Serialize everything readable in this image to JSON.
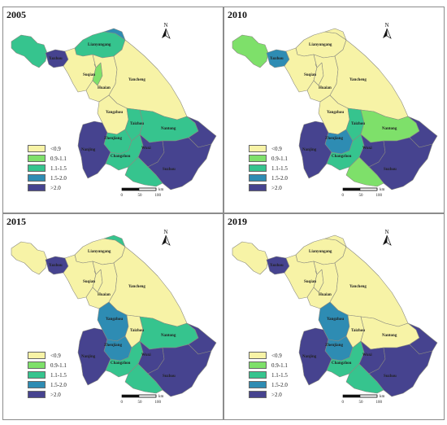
{
  "colors": {
    "c0": "#f7f3a6",
    "c1": "#7ee06a",
    "c2": "#36c48e",
    "c3": "#2e8cb3",
    "c4": "#46438f",
    "boundary": "#8a8a80"
  },
  "legend": [
    {
      "label": "<0.9",
      "color_key": "c0"
    },
    {
      "label": "0.9-1.1",
      "color_key": "c1"
    },
    {
      "label": "1.1-1.5",
      "color_key": "c2"
    },
    {
      "label": "1.5-2.0",
      "color_key": "c3"
    },
    {
      "label": ">2.0",
      "color_key": "c4"
    }
  ],
  "scale": {
    "labels": [
      "0",
      "50",
      "100"
    ],
    "unit": "km"
  },
  "north_label": "N",
  "cities": [
    "Lianyungang",
    "Xuzhou",
    "Suqian",
    "Huaian",
    "Yancheng",
    "Yangzhou",
    "Taizhou",
    "Nantong",
    "Zhenjiang",
    "Nanjing",
    "Changzhou",
    "Wuxi",
    "Suzhou"
  ],
  "panels": [
    {
      "year": "2005",
      "classes": {
        "xuzhou_w": "c2",
        "xuzhou_e": "c4",
        "lianyungang": "c2",
        "lyg_ne": "c3",
        "suqian": "c0",
        "suqian_strip": "c1",
        "huaian": "c0",
        "yancheng": "c0",
        "yangzhou": "c0",
        "taizhou": "c2",
        "nantong": "c2",
        "nantong_e": "c4",
        "zhenjiang": "c2",
        "nanjing": "c4",
        "changzhou": "c2",
        "wuxi": "c4",
        "suzhou": "c4",
        "suzhou_w": "c2"
      }
    },
    {
      "year": "2010",
      "classes": {
        "xuzhou_w": "c1",
        "xuzhou_e": "c3",
        "lianyungang": "c0",
        "lyg_ne": "c0",
        "suqian": "c0",
        "suqian_strip": "c0",
        "huaian": "c0",
        "yancheng": "c0",
        "yangzhou": "c0",
        "taizhou": "c2",
        "nantong": "c1",
        "nantong_e": "c4",
        "zhenjiang": "c3",
        "nanjing": "c4",
        "changzhou": "c2",
        "wuxi": "c4",
        "suzhou": "c4",
        "suzhou_w": "c1"
      }
    },
    {
      "year": "2015",
      "classes": {
        "xuzhou_w": "c0",
        "xuzhou_e": "c4",
        "lianyungang": "c0",
        "lyg_ne": "c2",
        "suqian": "c0",
        "suqian_strip": "c0",
        "huaian": "c0",
        "yancheng": "c0",
        "yangzhou": "c3",
        "taizhou": "c0",
        "nantong": "c2",
        "nantong_e": "c4",
        "zhenjiang": "c3",
        "nanjing": "c4",
        "changzhou": "c2",
        "wuxi": "c4",
        "suzhou": "c4",
        "suzhou_w": "c2"
      }
    },
    {
      "year": "2019",
      "classes": {
        "xuzhou_w": "c0",
        "xuzhou_e": "c4",
        "lianyungang": "c0",
        "lyg_ne": "c0",
        "suqian": "c0",
        "suqian_strip": "c0",
        "huaian": "c0",
        "yancheng": "c0",
        "yangzhou": "c3",
        "taizhou": "c0",
        "nantong": "c0",
        "nantong_e": "c4",
        "zhenjiang": "c3",
        "nanjing": "c4",
        "changzhou": "c2",
        "wuxi": "c4",
        "suzhou": "c4",
        "suzhou_w": "c2"
      }
    }
  ]
}
